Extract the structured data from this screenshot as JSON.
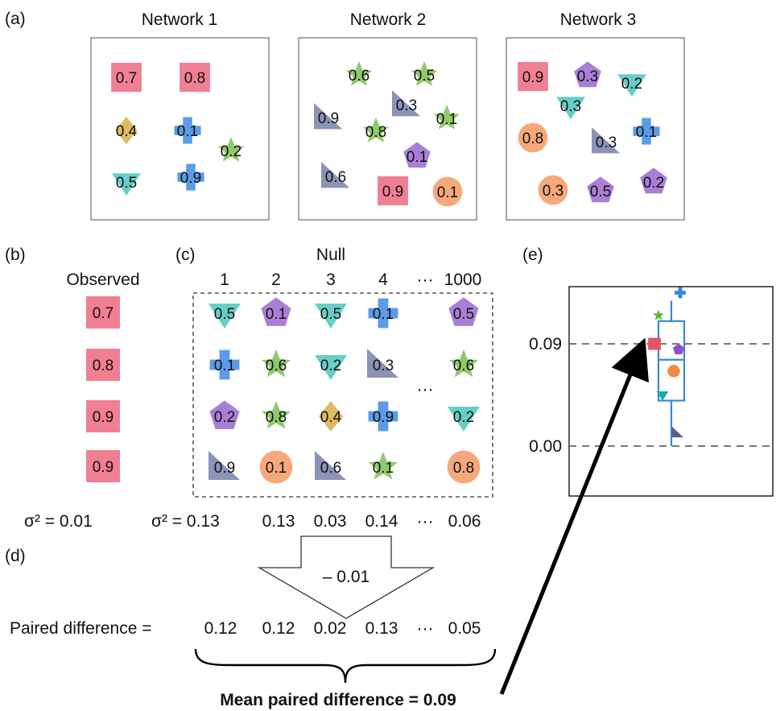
{
  "panels": {
    "a": "(a)",
    "b": "(b)",
    "c": "(c)",
    "d": "(d)",
    "e": "(e)"
  },
  "networks": [
    {
      "title": "Network 1",
      "nodes": [
        {
          "shape": "square",
          "label": "0.7"
        },
        {
          "shape": "square",
          "label": "0.8"
        },
        {
          "shape": "diamond",
          "label": "0.4"
        },
        {
          "shape": "cross",
          "label": "0.1"
        },
        {
          "shape": "star",
          "label": "0.2"
        },
        {
          "shape": "triangle-down",
          "label": "0.5"
        },
        {
          "shape": "cross",
          "label": "0.9"
        }
      ]
    },
    {
      "title": "Network 2",
      "nodes": [
        {
          "shape": "star",
          "label": "0.6"
        },
        {
          "shape": "star",
          "label": "0.5"
        },
        {
          "shape": "right-triangle",
          "label": "0.3"
        },
        {
          "shape": "right-triangle",
          "label": "0.9"
        },
        {
          "shape": "star",
          "label": "0.1"
        },
        {
          "shape": "star",
          "label": "0.8"
        },
        {
          "shape": "pentagon",
          "label": "0.1"
        },
        {
          "shape": "right-triangle",
          "label": "0.6"
        },
        {
          "shape": "square",
          "label": "0.9"
        },
        {
          "shape": "circle",
          "label": "0.1"
        }
      ]
    },
    {
      "title": "Network 3",
      "nodes": [
        {
          "shape": "square",
          "label": "0.9"
        },
        {
          "shape": "pentagon",
          "label": "0.3"
        },
        {
          "shape": "triangle-down",
          "label": "0.2"
        },
        {
          "shape": "triangle-down",
          "label": "0.3"
        },
        {
          "shape": "circle",
          "label": "0.8"
        },
        {
          "shape": "right-triangle",
          "label": "0.3"
        },
        {
          "shape": "cross",
          "label": "0.1"
        },
        {
          "shape": "circle",
          "label": "0.3"
        },
        {
          "shape": "pentagon",
          "label": "0.5"
        },
        {
          "shape": "pentagon",
          "label": "0.2"
        }
      ]
    }
  ],
  "observed": {
    "title": "Observed",
    "values": [
      "0.7",
      "0.8",
      "0.9",
      "0.9"
    ],
    "variance": "σ² = 0.01"
  },
  "null": {
    "title": "Null",
    "columns": [
      "1",
      "2",
      "3",
      "4",
      "1000"
    ],
    "ellipsis": "···",
    "grid": [
      [
        {
          "shape": "triangle-down",
          "label": "0.5"
        },
        {
          "shape": "pentagon",
          "label": "0.1"
        },
        {
          "shape": "triangle-down",
          "label": "0.5"
        },
        {
          "shape": "cross",
          "label": "0.1"
        },
        {
          "shape": "pentagon",
          "label": "0.5"
        }
      ],
      [
        {
          "shape": "cross",
          "label": "0.1"
        },
        {
          "shape": "star",
          "label": "0.6"
        },
        {
          "shape": "triangle-down",
          "label": "0.2"
        },
        {
          "shape": "right-triangle",
          "label": "0.3"
        },
        {
          "shape": "star",
          "label": "0.6"
        }
      ],
      [
        {
          "shape": "pentagon",
          "label": "0.2"
        },
        {
          "shape": "star",
          "label": "0.8"
        },
        {
          "shape": "diamond",
          "label": "0.4"
        },
        {
          "shape": "cross",
          "label": "0.9"
        },
        {
          "shape": "triangle-down",
          "label": "0.2"
        }
      ],
      [
        {
          "shape": "right-triangle",
          "label": "0.9"
        },
        {
          "shape": "circle",
          "label": "0.1"
        },
        {
          "shape": "right-triangle",
          "label": "0.6"
        },
        {
          "shape": "star",
          "label": "0.1"
        },
        {
          "shape": "circle",
          "label": "0.8"
        }
      ]
    ],
    "variances": [
      "σ² = 0.13",
      "0.13",
      "0.03",
      "0.14",
      "0.06"
    ]
  },
  "subtract_label": "– 0.01",
  "paired": {
    "label": "Paired difference =",
    "values": [
      "0.12",
      "0.12",
      "0.02",
      "0.13",
      "0.05"
    ],
    "mean_label": "Mean paired difference = 0.09"
  },
  "boxplot": {
    "y_ticks": [
      "0.09",
      "0.00"
    ],
    "y_tick_values": [
      0.09,
      0.0
    ],
    "box": {
      "min": -0.0,
      "q1": 0.04,
      "median": 0.076,
      "q3": 0.11,
      "max": 0.128
    },
    "points": [
      {
        "shape": "cross",
        "value": 0.135
      },
      {
        "shape": "star",
        "value": 0.115
      },
      {
        "shape": "square",
        "value": 0.09
      },
      {
        "shape": "pentagon",
        "value": 0.085
      },
      {
        "shape": "circle",
        "value": 0.066
      },
      {
        "shape": "triangle-down",
        "value": 0.045
      },
      {
        "shape": "right-triangle",
        "value": 0.012
      }
    ]
  },
  "colors": {
    "square": "#f07f93",
    "diamond": "#e0ba5e",
    "cross": "#5b9be8",
    "star": "#8fca6a",
    "triangle-down": "#66cfc7",
    "right-triangle": "#8b93b6",
    "pentagon": "#a97fd6",
    "circle": "#f6a87a",
    "box": "#3a86d9",
    "cross-point": "#3a86d9",
    "star-point": "#5dbb3d",
    "square-point": "#e3546a",
    "pentagon-point": "#8d4fd1",
    "circle-point": "#f08a3c",
    "triangle-point": "#1aa9b4",
    "rtri-point": "#59608a"
  }
}
